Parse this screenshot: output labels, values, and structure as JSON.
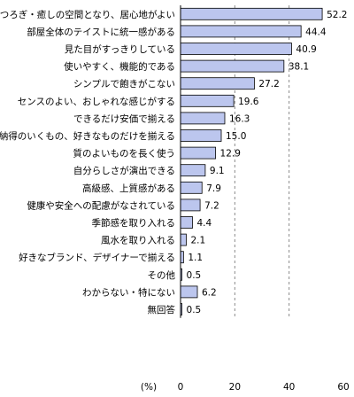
{
  "chart_data": {
    "type": "bar",
    "orientation": "horizontal",
    "categories": [
      "くつろぎ・癒しの空間となり、居心地がよい",
      "部屋全体のテイストに統一感がある",
      "見た目がすっきりしている",
      "使いやすく、機能的である",
      "シンプルで飽きがこない",
      "センスのよい、おしゃれな感じがする",
      "できるだけ安価で揃える",
      "納得のいくもの、好きなものだけを揃える",
      "質のよいものを長く使う",
      "自分らしさが演出できる",
      "高級感、上質感がある",
      "健康や安全への配慮がなされている",
      "季節感を取り入れる",
      "風水を取り入れる",
      "好きなブランド、デザイナーで揃える",
      "その他",
      "わからない・特にない",
      "無回答"
    ],
    "values": [
      52.2,
      44.4,
      40.9,
      38.1,
      27.2,
      19.6,
      16.3,
      15.0,
      12.9,
      9.1,
      7.9,
      7.2,
      4.4,
      2.1,
      1.1,
      0.5,
      6.2,
      0.5
    ],
    "value_labels": [
      "52.2",
      "44.4",
      "40.9",
      "38.1",
      "27.2",
      "19.6",
      "16.3",
      "15.0",
      "12.9",
      "9.1",
      "7.9",
      "7.2",
      "4.4",
      "2.1",
      "1.1",
      "0.5",
      "6.2",
      "0.5"
    ],
    "xlim": [
      0,
      60
    ],
    "xticks": [
      "0",
      "20",
      "40",
      "60"
    ],
    "unit_label": "(%)",
    "grid": "dashed vertical at 20 and 40",
    "bar_color": "#bcc6ee",
    "bar_edge": "#000000"
  }
}
